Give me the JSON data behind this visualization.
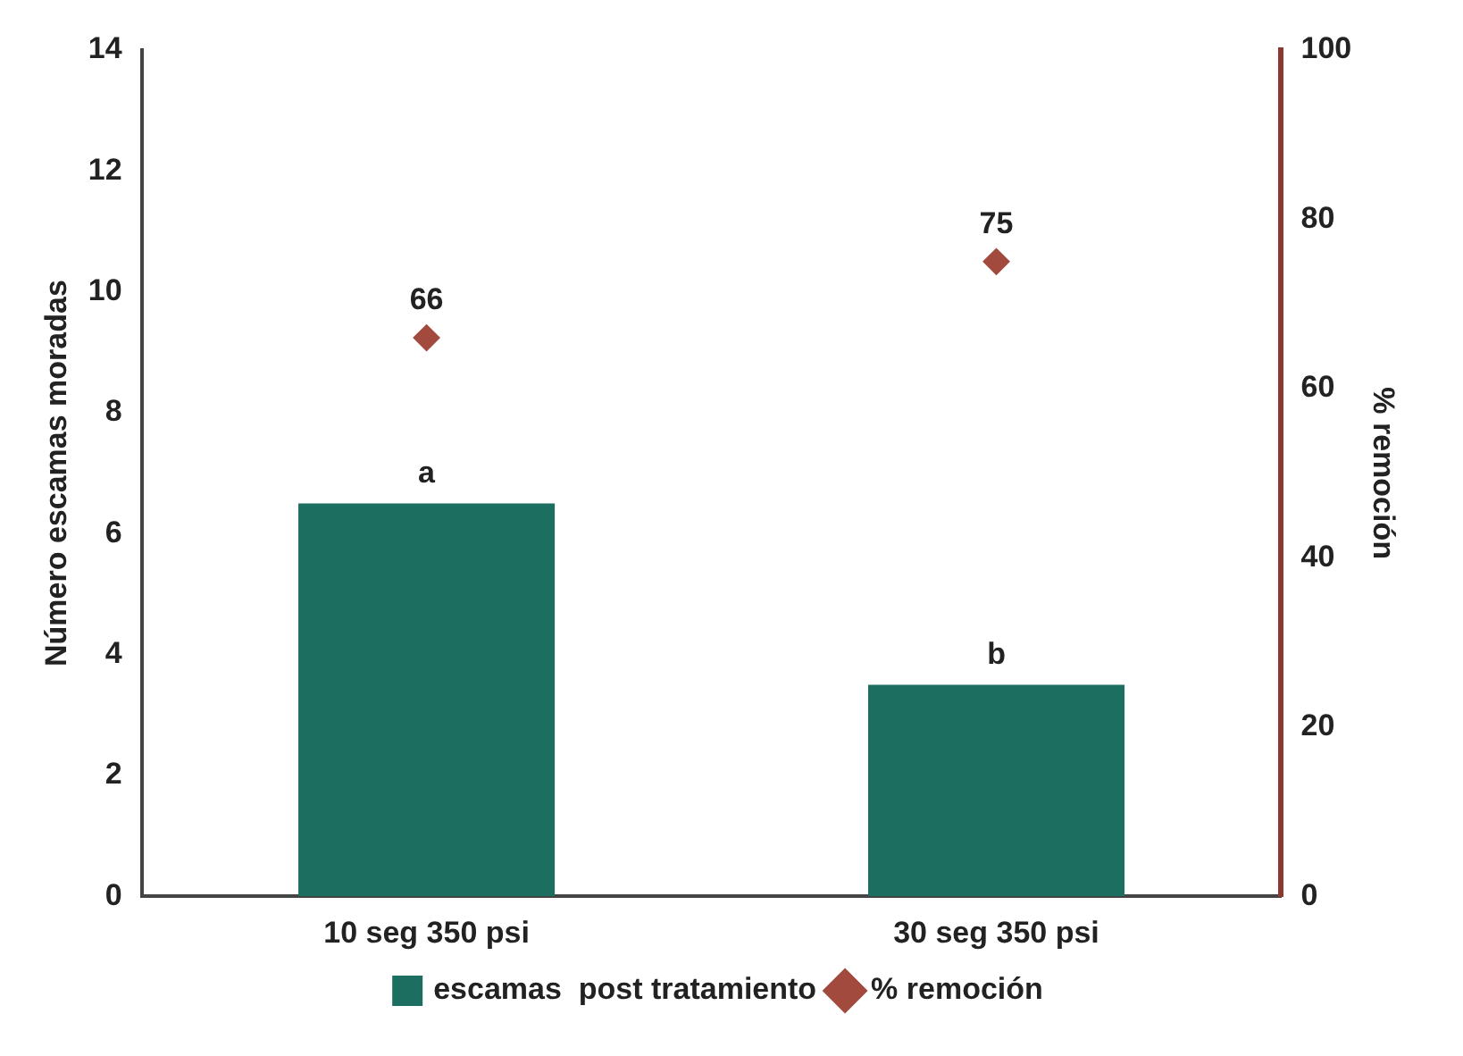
{
  "chart_data": {
    "type": "bar",
    "categories": [
      "10 seg 350 psi",
      "30 seg 350 psi"
    ],
    "ylabel": "Número escamas moradas",
    "y2label": "% remoción",
    "series": [
      {
        "name": "escamas  post tratamiento",
        "color": "#1b6e60",
        "values": [
          6.5,
          3.5
        ]
      },
      {
        "name": "% remoción",
        "type": "scatter",
        "axis": "y2",
        "color": "#a34a3e",
        "marker": "diamond",
        "values": [
          66,
          75
        ],
        "value_labels": [
          "66",
          "75"
        ]
      }
    ],
    "ylim": [
      0,
      14
    ],
    "yticks": [
      0,
      2,
      4,
      6,
      8,
      10,
      12,
      14
    ],
    "y2lim": [
      0,
      100
    ],
    "y2ticks": [
      0,
      20,
      40,
      60,
      80,
      100
    ],
    "annotations": [
      {
        "text": "a",
        "x": "10 seg 350 psi",
        "y": 6.5
      },
      {
        "text": "b",
        "x": "30 seg 350 psi",
        "y": 3.5
      }
    ],
    "legend": "bottom",
    "grid": false
  }
}
